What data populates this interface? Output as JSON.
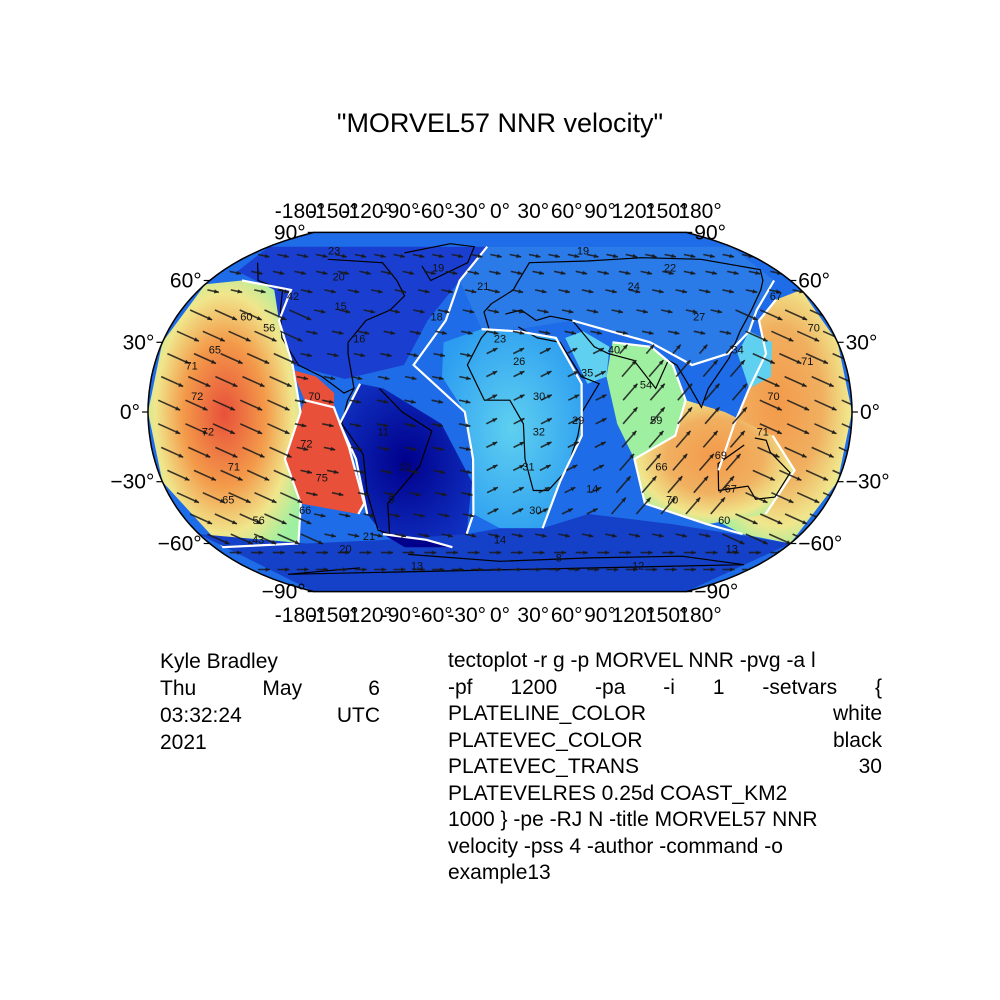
{
  "title": "\"MORVEL57 NNR velocity\"",
  "colors": {
    "plate_line": "#ffffff",
    "vector": "#000000",
    "coast": "#000000",
    "velocity_scale": [
      "#00008b",
      "#1e5bd8",
      "#2b8cf0",
      "#5fd0f0",
      "#9ef0a0",
      "#f0e68c",
      "#f39a4a",
      "#e8503a"
    ]
  },
  "projection": "Robinson (-RJ N)",
  "longitude_labels": {
    "top": [
      "-180°",
      "-150°",
      "-120°",
      "-90°",
      "-60°",
      "-30°",
      "0°",
      "30°",
      "60°",
      "90°",
      "120°",
      "150°",
      "180°"
    ],
    "bottom": [
      "-180°",
      "-150°",
      "-120°",
      "-90°",
      "-60°",
      "-30°",
      "0°",
      "30°",
      "60°",
      "90°",
      "120°",
      "150°",
      "180°"
    ]
  },
  "latitude_labels": {
    "left": [
      "90°",
      "60°",
      "30°",
      "0°",
      "−30°",
      "−60°",
      "−90°"
    ],
    "right": [
      "90°",
      "60°",
      "30°",
      "0°",
      "−30°",
      "−60°",
      "−90°"
    ]
  },
  "velocity_labels": [
    {
      "lat": 25,
      "lon": -150,
      "v": "65"
    },
    {
      "lat": 18,
      "lon": -160,
      "v": "71"
    },
    {
      "lat": 5,
      "lon": -155,
      "v": "72"
    },
    {
      "lat": -10,
      "lon": -150,
      "v": "72"
    },
    {
      "lat": -25,
      "lon": -140,
      "v": "71"
    },
    {
      "lat": -40,
      "lon": -150,
      "v": "65"
    },
    {
      "lat": -50,
      "lon": -140,
      "v": "56"
    },
    {
      "lat": 40,
      "lon": -140,
      "v": "60"
    },
    {
      "lat": 35,
      "lon": -125,
      "v": "56"
    },
    {
      "lat": 50,
      "lon": -120,
      "v": "42"
    },
    {
      "lat": -60,
      "lon": -150,
      "v": "43"
    },
    {
      "lat": -45,
      "lon": -110,
      "v": "66"
    },
    {
      "lat": -15,
      "lon": -100,
      "v": "72"
    },
    {
      "lat": -30,
      "lon": -95,
      "v": "75"
    },
    {
      "lat": 5,
      "lon": -95,
      "v": "70"
    },
    {
      "lat": 75,
      "lon": -120,
      "v": "23"
    },
    {
      "lat": 60,
      "lon": -100,
      "v": "20"
    },
    {
      "lat": 45,
      "lon": -90,
      "v": "15"
    },
    {
      "lat": 30,
      "lon": -75,
      "v": "16"
    },
    {
      "lat": 65,
      "lon": -40,
      "v": "19"
    },
    {
      "lat": 40,
      "lon": -35,
      "v": "18"
    },
    {
      "lat": -10,
      "lon": -60,
      "v": "11"
    },
    {
      "lat": -25,
      "lon": -50,
      "v": "10"
    },
    {
      "lat": -40,
      "lon": -60,
      "v": "9"
    },
    {
      "lat": -58,
      "lon": -80,
      "v": "21"
    },
    {
      "lat": -65,
      "lon": -100,
      "v": "20"
    },
    {
      "lat": -75,
      "lon": -60,
      "v": "13"
    },
    {
      "lat": 55,
      "lon": -10,
      "v": "21"
    },
    {
      "lat": 30,
      "lon": 0,
      "v": "23"
    },
    {
      "lat": 20,
      "lon": 10,
      "v": "26"
    },
    {
      "lat": 5,
      "lon": 20,
      "v": "30"
    },
    {
      "lat": -10,
      "lon": 20,
      "v": "32"
    },
    {
      "lat": -25,
      "lon": 15,
      "v": "31"
    },
    {
      "lat": -45,
      "lon": 20,
      "v": "30"
    },
    {
      "lat": -60,
      "lon": 0,
      "v": "14"
    },
    {
      "lat": 15,
      "lon": 45,
      "v": "35"
    },
    {
      "lat": -5,
      "lon": 40,
      "v": "29"
    },
    {
      "lat": -35,
      "lon": 50,
      "v": "14"
    },
    {
      "lat": 25,
      "lon": 60,
      "v": "40"
    },
    {
      "lat": 10,
      "lon": 75,
      "v": "54"
    },
    {
      "lat": -5,
      "lon": 80,
      "v": "59"
    },
    {
      "lat": -25,
      "lon": 85,
      "v": "66"
    },
    {
      "lat": -40,
      "lon": 95,
      "v": "70"
    },
    {
      "lat": -20,
      "lon": 115,
      "v": "69"
    },
    {
      "lat": -35,
      "lon": 125,
      "v": "67"
    },
    {
      "lat": -50,
      "lon": 130,
      "v": "60"
    },
    {
      "lat": -10,
      "lon": 135,
      "v": "71"
    },
    {
      "lat": 5,
      "lon": 140,
      "v": "70"
    },
    {
      "lat": 20,
      "lon": 160,
      "v": "71"
    },
    {
      "lat": 35,
      "lon": 170,
      "v": "70"
    },
    {
      "lat": 50,
      "lon": 160,
      "v": "67"
    },
    {
      "lat": 65,
      "lon": 110,
      "v": "22"
    },
    {
      "lat": 75,
      "lon": 60,
      "v": "19"
    },
    {
      "lat": 55,
      "lon": 80,
      "v": "24"
    },
    {
      "lat": 40,
      "lon": 110,
      "v": "27"
    },
    {
      "lat": 25,
      "lon": 125,
      "v": "34"
    },
    {
      "lat": -65,
      "lon": 150,
      "v": "13"
    },
    {
      "lat": -75,
      "lon": 100,
      "v": "12"
    },
    {
      "lat": -70,
      "lon": 40,
      "v": "8"
    }
  ],
  "author": {
    "name": "Kyle Bradley",
    "date_line": "Thu May 6",
    "time_line": "03:32:24 UTC",
    "year": "2021"
  },
  "command": {
    "line1": "tectoplot -r g -p MORVEL NNR -pvg -a l",
    "line2": "-pf 1200 -pa -i 1 -setvars {",
    "line3": "PLATELINE_COLOR white",
    "line4": "PLATEVEC_COLOR black",
    "line5": "PLATEVEC_TRANS 30",
    "line6": "PLATEVELRES 0.25d COAST_KM2",
    "line7": "1000 } -pe -RJ N -title MORVEL57 NNR",
    "line8": "velocity -pss 4 -author -command -o",
    "line9": "example13"
  }
}
